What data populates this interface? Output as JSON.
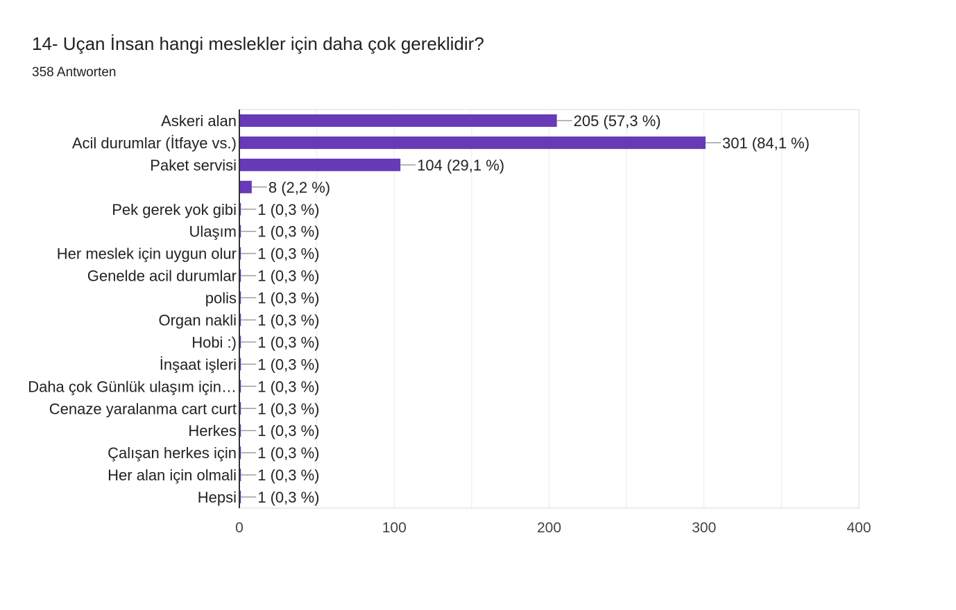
{
  "header": {
    "title": "14- Uçan İnsan hangi meslekler için daha çok gereklidir?",
    "response_count": "358 Antworten"
  },
  "colors": {
    "bar": "#673ab7",
    "grid": "#ebebeb",
    "axis": "#333333",
    "text": "#222222",
    "tick_text": "#444444",
    "leader": "#9e9e9e"
  },
  "chart_data": {
    "type": "bar",
    "orientation": "horizontal",
    "title": "14- Uçan İnsan hangi meslekler için daha çok gereklidir?",
    "subtitle": "358 Antworten",
    "categories": [
      "Askeri alan",
      "Acil durumlar (İtfaye vs.)",
      "Paket servisi",
      "",
      "Pek gerek yok gibi",
      "Ulaşım",
      "Her meslek için uygun olur",
      "Genelde acil durumlar",
      "polis",
      "Organ nakli",
      "Hobi :)",
      "İnşaat işleri",
      "Daha çok Günlük ulaşım için…",
      "Cenaze yaralanma cart curt",
      "Herkes",
      "Çalışan herkes için",
      "Her alan için olmali",
      "Hepsi"
    ],
    "values": [
      205,
      301,
      104,
      8,
      1,
      1,
      1,
      1,
      1,
      1,
      1,
      1,
      1,
      1,
      1,
      1,
      1,
      1
    ],
    "data_labels": [
      "205 (57,3 %)",
      "301 (84,1 %)",
      "104 (29,1 %)",
      "8 (2,2 %)",
      "1 (0,3 %)",
      "1 (0,3 %)",
      "1 (0,3 %)",
      "1 (0,3 %)",
      "1 (0,3 %)",
      "1 (0,3 %)",
      "1 (0,3 %)",
      "1 (0,3 %)",
      "1 (0,3 %)",
      "1 (0,3 %)",
      "1 (0,3 %)",
      "1 (0,3 %)",
      "1 (0,3 %)",
      "1 (0,3 %)"
    ],
    "xlim": [
      0,
      400
    ],
    "xticks": [
      0,
      100,
      200,
      300,
      400
    ],
    "xtick_labels": [
      "0",
      "100",
      "200",
      "300",
      "400"
    ],
    "grid": true
  }
}
